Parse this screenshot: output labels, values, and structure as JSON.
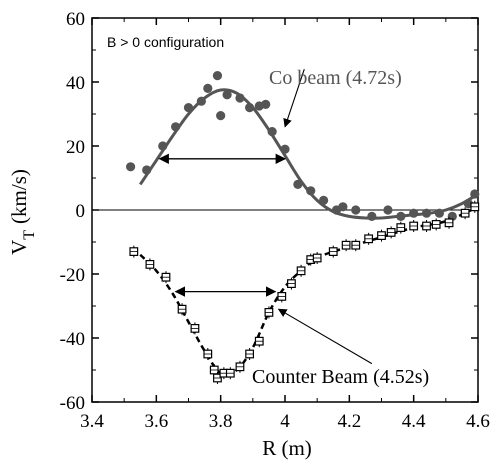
{
  "chart_data": {
    "type": "scatter",
    "annotation_box": "B > 0 configuration",
    "xlabel": "R (m)",
    "ylabel_main": "V",
    "ylabel_sub": "T",
    "ylabel_unit": "(km/s)",
    "xlim": [
      3.4,
      4.6
    ],
    "ylim": [
      -60,
      60
    ],
    "xticks": [
      3.4,
      3.6,
      3.8,
      4.0,
      4.2,
      4.4,
      4.6
    ],
    "xtick_labels": [
      "3.4",
      "3.6",
      "3.8",
      "4",
      "4.2",
      "4.4",
      "4.6"
    ],
    "yticks": [
      -60,
      -40,
      -20,
      0,
      20,
      40,
      60
    ],
    "ytick_labels": [
      "-60",
      "-40",
      "-20",
      "0",
      "20",
      "40",
      "60"
    ],
    "grid": false,
    "zero_line": true,
    "series": [
      {
        "name": "Co beam (4.72s)",
        "marker": "filled-circle",
        "color": "#555555",
        "points": [
          [
            3.52,
            13.5
          ],
          [
            3.57,
            12.5
          ],
          [
            3.62,
            20
          ],
          [
            3.66,
            26
          ],
          [
            3.7,
            32
          ],
          [
            3.74,
            34
          ],
          [
            3.76,
            38
          ],
          [
            3.79,
            42
          ],
          [
            3.8,
            29.5
          ],
          [
            3.82,
            36
          ],
          [
            3.86,
            35
          ],
          [
            3.89,
            32
          ],
          [
            3.92,
            32.5
          ],
          [
            3.94,
            33
          ],
          [
            3.96,
            24.5
          ],
          [
            4.0,
            19
          ],
          [
            4.04,
            8
          ],
          [
            4.08,
            6
          ],
          [
            4.12,
            3
          ],
          [
            4.16,
            0
          ],
          [
            4.18,
            1
          ],
          [
            4.22,
            0
          ],
          [
            4.27,
            -2
          ],
          [
            4.32,
            0
          ],
          [
            4.36,
            -2
          ],
          [
            4.4,
            -1
          ],
          [
            4.44,
            -1
          ],
          [
            4.48,
            -1
          ],
          [
            4.52,
            -2
          ],
          [
            4.57,
            2
          ],
          [
            4.59,
            5
          ]
        ]
      },
      {
        "name": "Counter Beam (4.52s)",
        "marker": "open-square-errorbar",
        "color": "#000000",
        "points": [
          [
            3.53,
            -13
          ],
          [
            3.58,
            -17
          ],
          [
            3.63,
            -21
          ],
          [
            3.68,
            -31
          ],
          [
            3.72,
            -37
          ],
          [
            3.76,
            -45
          ],
          [
            3.78,
            -50
          ],
          [
            3.79,
            -52.5
          ],
          [
            3.81,
            -51
          ],
          [
            3.83,
            -51
          ],
          [
            3.86,
            -49
          ],
          [
            3.89,
            -45
          ],
          [
            3.92,
            -41
          ],
          [
            3.95,
            -32
          ],
          [
            3.99,
            -27
          ],
          [
            4.02,
            -23
          ],
          [
            4.05,
            -19
          ],
          [
            4.08,
            -15.5
          ],
          [
            4.1,
            -15
          ],
          [
            4.15,
            -13
          ],
          [
            4.19,
            -11
          ],
          [
            4.22,
            -11
          ],
          [
            4.26,
            -9
          ],
          [
            4.3,
            -8
          ],
          [
            4.33,
            -7
          ],
          [
            4.36,
            -5.5
          ],
          [
            4.4,
            -5
          ],
          [
            4.44,
            -5
          ],
          [
            4.47,
            -4.5
          ],
          [
            4.51,
            -4
          ],
          [
            4.56,
            -1
          ],
          [
            4.59,
            1
          ]
        ]
      }
    ],
    "fits": [
      {
        "series": "Co beam (4.72s)",
        "style": "solid",
        "color": "#555555",
        "points": [
          [
            3.55,
            8
          ],
          [
            3.6,
            15.5
          ],
          [
            3.65,
            23
          ],
          [
            3.7,
            30
          ],
          [
            3.75,
            35
          ],
          [
            3.8,
            37.5
          ],
          [
            3.85,
            36.5
          ],
          [
            3.9,
            32
          ],
          [
            3.95,
            25
          ],
          [
            4.0,
            17
          ],
          [
            4.05,
            9
          ],
          [
            4.1,
            3
          ],
          [
            4.15,
            -0.5
          ],
          [
            4.2,
            -2
          ],
          [
            4.25,
            -2.5
          ],
          [
            4.3,
            -2.5
          ],
          [
            4.35,
            -2
          ],
          [
            4.4,
            -1.5
          ],
          [
            4.45,
            -1
          ],
          [
            4.5,
            0
          ],
          [
            4.55,
            2
          ],
          [
            4.6,
            5
          ]
        ]
      },
      {
        "series": "Counter Beam (4.52s)",
        "style": "dashed",
        "color": "#000000",
        "points": [
          [
            3.55,
            -14
          ],
          [
            3.6,
            -19
          ],
          [
            3.65,
            -26
          ],
          [
            3.7,
            -35
          ],
          [
            3.75,
            -44
          ],
          [
            3.8,
            -51
          ],
          [
            3.85,
            -50
          ],
          [
            3.9,
            -43
          ],
          [
            3.95,
            -32
          ],
          [
            4.0,
            -24
          ],
          [
            4.05,
            -19
          ],
          [
            4.1,
            -15
          ],
          [
            4.15,
            -13
          ],
          [
            4.2,
            -11.5
          ],
          [
            4.3,
            -8.5
          ],
          [
            4.4,
            -5.5
          ],
          [
            4.5,
            -3.5
          ],
          [
            4.6,
            1
          ]
        ]
      }
    ],
    "width_arrows": [
      {
        "series": "Co beam (4.72s)",
        "y": 16,
        "x_start": 3.61,
        "x_end": 4.0
      },
      {
        "series": "Counter Beam (4.52s)",
        "y": -25.5,
        "x_start": 3.66,
        "x_end": 3.97
      }
    ],
    "label_pointers": [
      {
        "label": "Co beam (4.72s)",
        "from": [
          4.06,
          44
        ],
        "to": [
          4.0,
          26
        ]
      },
      {
        "label": "Counter Beam (4.52s)",
        "from": [
          4.27,
          -48
        ],
        "to": [
          3.98,
          -31
        ]
      }
    ]
  }
}
